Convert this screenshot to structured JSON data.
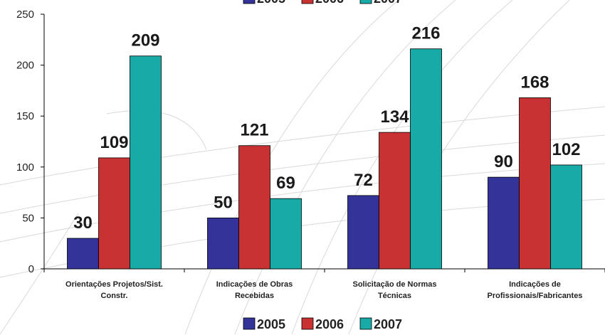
{
  "chart_data": {
    "type": "bar",
    "title": "",
    "xlabel": "",
    "ylabel": "",
    "ylim": [
      0,
      250
    ],
    "yticks": [
      0,
      50,
      100,
      150,
      200,
      250
    ],
    "grid": false,
    "legend": "top-center and bottom-center",
    "categories": [
      [
        "Orientações Projetos/Sist.",
        "Constr."
      ],
      [
        "Indicações de Obras",
        "Recebidas"
      ],
      [
        "Solicitação de Normas",
        "Técnicas"
      ],
      [
        "Indicações de",
        "Profissionais/Fabricantes"
      ]
    ],
    "series": [
      {
        "name": "2005",
        "color": "#333399",
        "values": [
          30,
          50,
          72,
          90
        ]
      },
      {
        "name": "2006",
        "color": "#c83232",
        "values": [
          109,
          121,
          134,
          168
        ]
      },
      {
        "name": "2007",
        "color": "#17aaa6",
        "values": [
          209,
          69,
          216,
          102
        ]
      }
    ]
  }
}
